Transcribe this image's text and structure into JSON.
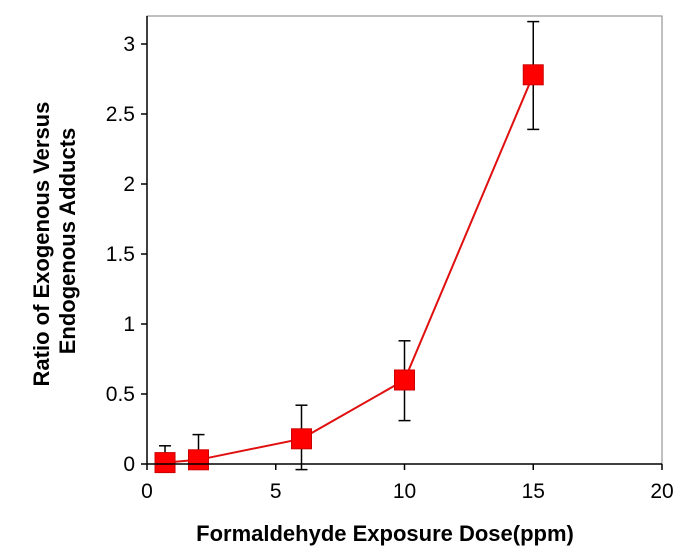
{
  "chart_data": {
    "type": "scatter",
    "title": "",
    "xlabel": "Formaldehyde Exposure Dose(ppm)",
    "ylabel_lines": [
      "Ratio of Exogenous Versus",
      "Endogenous Adducts"
    ],
    "xlim": [
      0,
      20
    ],
    "ylim": [
      0,
      3.2
    ],
    "x_ticks": [
      0,
      5,
      10,
      15,
      20
    ],
    "y_ticks": [
      0,
      0.5,
      1,
      1.5,
      2,
      2.5,
      3
    ],
    "x_tick_labels": [
      "0",
      "5",
      "10",
      "15",
      "20"
    ],
    "y_tick_labels": [
      "0",
      "0.5",
      "1",
      "1.5",
      "2",
      "2.5",
      "3"
    ],
    "grid": false,
    "legend": "none",
    "series": [
      {
        "x": [
          0.7,
          2,
          6,
          10,
          15
        ],
        "y": [
          0.01,
          0.03,
          0.18,
          0.6,
          2.78
        ],
        "error_upper": [
          0.13,
          0.21,
          0.42,
          0.88,
          3.16
        ],
        "error_lower": [
          0,
          0,
          -0.04,
          0.31,
          2.39
        ],
        "line_color": "#e01010",
        "marker_color": "#ff0000",
        "error_bar_color": "#000000",
        "marker": "square"
      }
    ]
  }
}
